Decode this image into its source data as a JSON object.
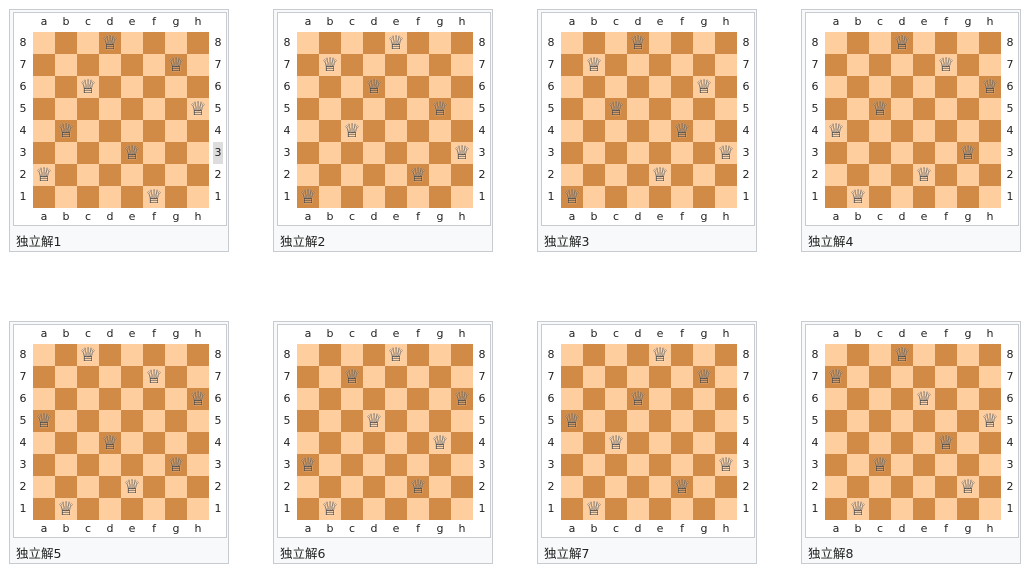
{
  "files": [
    "a",
    "b",
    "c",
    "d",
    "e",
    "f",
    "g",
    "h"
  ],
  "ranks": [
    "8",
    "7",
    "6",
    "5",
    "4",
    "3",
    "2",
    "1"
  ],
  "colors": {
    "light": "#ffce9e",
    "dark": "#d18b47",
    "frame": "#c8ccd1"
  },
  "piece_icon": "white-queen-icon",
  "boards": [
    {
      "caption": "独立解1",
      "queens": [
        "d8",
        "g7",
        "c6",
        "h5",
        "b4",
        "e3",
        "a2",
        "f1"
      ]
    },
    {
      "caption": "独立解2",
      "queens": [
        "e8",
        "b7",
        "d6",
        "g5",
        "c4",
        "h3",
        "f2",
        "a1"
      ]
    },
    {
      "caption": "独立解3",
      "queens": [
        "d8",
        "b7",
        "g6",
        "c5",
        "f4",
        "h3",
        "e2",
        "a1"
      ]
    },
    {
      "caption": "独立解4",
      "queens": [
        "d8",
        "f7",
        "h6",
        "c5",
        "a4",
        "g3",
        "e2",
        "b1"
      ]
    },
    {
      "caption": "独立解5",
      "queens": [
        "c8",
        "f7",
        "h6",
        "a5",
        "d4",
        "g3",
        "e2",
        "b1"
      ]
    },
    {
      "caption": "独立解6",
      "queens": [
        "e8",
        "c7",
        "h6",
        "d5",
        "g4",
        "a3",
        "f2",
        "b1"
      ]
    },
    {
      "caption": "独立解7",
      "queens": [
        "e8",
        "g7",
        "d6",
        "a5",
        "c4",
        "h3",
        "f2",
        "b1"
      ]
    },
    {
      "caption": "独立解8",
      "queens": [
        "d8",
        "a7",
        "e6",
        "h5",
        "f4",
        "c3",
        "g2",
        "b1"
      ]
    }
  ]
}
